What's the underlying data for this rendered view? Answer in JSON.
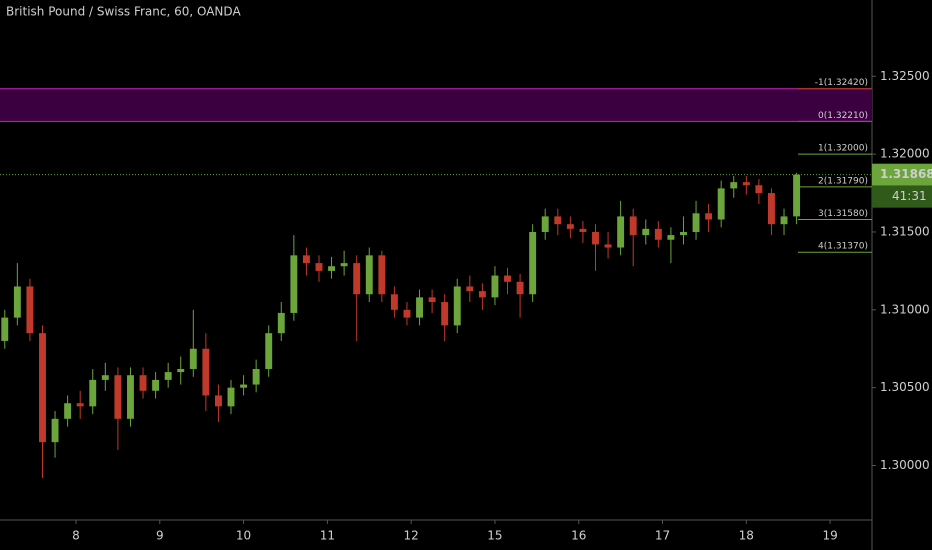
{
  "chart_data": {
    "type": "candlestick",
    "title": "British Pound / Swiss Franc, 60, OANDA",
    "xlim": [
      -0.907,
      9.5
    ],
    "xticks": [
      {
        "value": 0,
        "label": "8"
      },
      {
        "value": 1,
        "label": "9"
      },
      {
        "value": 2,
        "label": "10"
      },
      {
        "value": 3,
        "label": "11"
      },
      {
        "value": 4,
        "label": "12"
      },
      {
        "value": 5,
        "label": "15"
      },
      {
        "value": 6,
        "label": "16"
      },
      {
        "value": 7,
        "label": "17"
      },
      {
        "value": 8,
        "label": "18"
      },
      {
        "value": 9,
        "label": "19"
      }
    ],
    "ylim": [
      1.2965,
      1.3299
    ],
    "yticks": [
      {
        "value": 1.3,
        "label": "1.30000"
      },
      {
        "value": 1.305,
        "label": "1.30500"
      },
      {
        "value": 1.31,
        "label": "1.31000"
      },
      {
        "value": 1.315,
        "label": "1.31500"
      },
      {
        "value": 1.32,
        "label": "1.32000"
      },
      {
        "value": 1.325,
        "label": "1.32500"
      }
    ],
    "up_color": "#6ca53b",
    "down_color": "#c0392b",
    "x": [
      -0.85,
      -0.7,
      -0.55,
      -0.4,
      -0.25,
      -0.1,
      0.05,
      0.2,
      0.35,
      0.5,
      0.65,
      0.8,
      0.95,
      1.1,
      1.25,
      1.4,
      1.55,
      1.7,
      1.85,
      2,
      2.15,
      2.3,
      2.45,
      2.6,
      2.75,
      2.9,
      3.05,
      3.2,
      3.35,
      3.5,
      3.65,
      3.8,
      3.95,
      4.1,
      4.25,
      4.4,
      4.55,
      4.7,
      4.85,
      5,
      5.15,
      5.3,
      5.45,
      5.6,
      5.75,
      5.9,
      6.05,
      6.2,
      6.35,
      6.5,
      6.65,
      6.8,
      6.95,
      7.1,
      7.25,
      7.4,
      7.55,
      7.7,
      7.85,
      8,
      8.15,
      8.3,
      8.45,
      8.6
    ],
    "open": [
      1.308,
      1.3095,
      1.3115,
      1.3085,
      1.3015,
      1.303,
      1.304,
      1.3038,
      1.3055,
      1.3058,
      1.303,
      1.3058,
      1.3048,
      1.3055,
      1.306,
      1.3062,
      1.3075,
      1.3045,
      1.3038,
      1.305,
      1.3052,
      1.3062,
      1.3085,
      1.3098,
      1.3135,
      1.313,
      1.3125,
      1.3128,
      1.313,
      1.311,
      1.3135,
      1.311,
      1.31,
      1.3095,
      1.3108,
      1.3105,
      1.309,
      1.3115,
      1.3112,
      1.3108,
      1.3122,
      1.3118,
      1.311,
      1.315,
      1.316,
      1.3155,
      1.3152,
      1.315,
      1.3142,
      1.314,
      1.316,
      1.3148,
      1.3152,
      1.3145,
      1.3148,
      1.315,
      1.3162,
      1.3158,
      1.3178,
      1.3182,
      1.318,
      1.3175,
      1.3155,
      1.316
    ],
    "high": [
      1.31,
      1.313,
      1.312,
      1.309,
      1.3035,
      1.3045,
      1.3048,
      1.3062,
      1.3066,
      1.3063,
      1.3063,
      1.3063,
      1.306,
      1.3066,
      1.307,
      1.31,
      1.3085,
      1.3052,
      1.3055,
      1.3058,
      1.3068,
      1.309,
      1.3105,
      1.3148,
      1.314,
      1.3135,
      1.3134,
      1.3138,
      1.3135,
      1.314,
      1.3138,
      1.3115,
      1.3105,
      1.3113,
      1.3113,
      1.311,
      1.312,
      1.3122,
      1.3117,
      1.3128,
      1.3127,
      1.3123,
      1.3155,
      1.3165,
      1.3165,
      1.316,
      1.3157,
      1.3155,
      1.315,
      1.317,
      1.3165,
      1.3158,
      1.3157,
      1.3153,
      1.316,
      1.317,
      1.3168,
      1.3183,
      1.3186,
      1.3186,
      1.3184,
      1.3178,
      1.3165,
      1.3188
    ],
    "low": [
      1.3075,
      1.309,
      1.308,
      1.2992,
      1.3005,
      1.3025,
      1.303,
      1.3033,
      1.3048,
      1.301,
      1.3025,
      1.3043,
      1.3043,
      1.305,
      1.3052,
      1.3057,
      1.3035,
      1.3028,
      1.3033,
      1.3045,
      1.3047,
      1.3057,
      1.308,
      1.3093,
      1.3122,
      1.3118,
      1.312,
      1.3122,
      1.308,
      1.3105,
      1.3105,
      1.3095,
      1.309,
      1.309,
      1.3098,
      1.308,
      1.3085,
      1.3105,
      1.31,
      1.3103,
      1.311,
      1.3095,
      1.3105,
      1.3145,
      1.3148,
      1.3146,
      1.3143,
      1.3125,
      1.3133,
      1.3135,
      1.3128,
      1.3142,
      1.314,
      1.313,
      1.3142,
      1.3145,
      1.315,
      1.3153,
      1.3172,
      1.3174,
      1.3168,
      1.3148,
      1.3148,
      1.3155
    ],
    "close": [
      1.3095,
      1.3115,
      1.3085,
      1.3015,
      1.303,
      1.304,
      1.3038,
      1.3055,
      1.3058,
      1.303,
      1.3058,
      1.3048,
      1.3055,
      1.306,
      1.3062,
      1.3075,
      1.3045,
      1.3038,
      1.305,
      1.3052,
      1.3062,
      1.3085,
      1.3098,
      1.3135,
      1.313,
      1.3125,
      1.3128,
      1.313,
      1.311,
      1.3135,
      1.311,
      1.31,
      1.3095,
      1.3108,
      1.3105,
      1.309,
      1.3115,
      1.3112,
      1.3108,
      1.3122,
      1.3118,
      1.311,
      1.315,
      1.316,
      1.3155,
      1.3152,
      1.315,
      1.3142,
      1.314,
      1.316,
      1.3148,
      1.3152,
      1.3145,
      1.3148,
      1.315,
      1.3162,
      1.3158,
      1.3178,
      1.3182,
      1.318,
      1.3175,
      1.3155,
      1.316,
      1.31868
    ],
    "zone": {
      "top": 1.3242,
      "bottom": 1.3221,
      "color": "#3a0040",
      "line_color": "#d020c0"
    },
    "fib_levels": [
      {
        "value": 1.3242,
        "label": "-1(1.32420)",
        "color": "#c0392b"
      },
      {
        "value": 1.3221,
        "label": "0(1.32210)",
        "color": "#d020c0"
      },
      {
        "value": 1.32,
        "label": "1(1.32000)",
        "color": "#6ca53b"
      },
      {
        "value": 1.3179,
        "label": "2(1.31790)",
        "color": "#6ca53b"
      },
      {
        "value": 1.3158,
        "label": "3(1.31580)",
        "color": "#6ca53b"
      },
      {
        "value": 1.3137,
        "label": "4(1.31370)",
        "color": "#6ca53b"
      }
    ],
    "last_price": {
      "value": 1.31868,
      "label": "1.31868"
    },
    "countdown": "41:31"
  }
}
